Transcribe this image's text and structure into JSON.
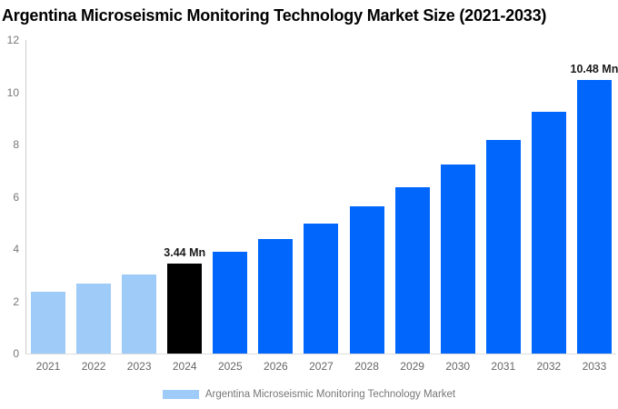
{
  "chart_data": {
    "type": "bar",
    "title": "Argentina Microseismic Monitoring Technology Market Size (2021-2033)",
    "categories": [
      "2021",
      "2022",
      "2023",
      "2024",
      "2025",
      "2026",
      "2027",
      "2028",
      "2029",
      "2030",
      "2031",
      "2032",
      "2033"
    ],
    "values": [
      2.37,
      2.69,
      3.04,
      3.44,
      3.89,
      4.4,
      4.98,
      5.64,
      6.38,
      7.22,
      8.17,
      9.25,
      10.48
    ],
    "unit": "Mn",
    "xlabel": "",
    "ylabel": "",
    "ylim": [
      0,
      12
    ],
    "y_ticks": [
      0,
      2,
      4,
      6,
      8,
      10,
      12
    ],
    "grid": false,
    "legend_position": "bottom",
    "bar_segments": [
      "historical",
      "historical",
      "historical",
      "current",
      "forecast",
      "forecast",
      "forecast",
      "forecast",
      "forecast",
      "forecast",
      "forecast",
      "forecast",
      "forecast"
    ],
    "segment_colors": {
      "historical": "#9ECBF8",
      "current": "#000000",
      "forecast": "#0066FC"
    },
    "point_labels": {
      "3": "3.44 Mn",
      "12": "10.48 Mn"
    },
    "legend": [
      {
        "label": "Argentina Microseismic Monitoring Technology Market",
        "swatch_color": "#9ECBF8"
      }
    ],
    "axis_colors": {
      "y_axis_line": "#cccccc",
      "x_axis_line": "#dddddd",
      "tick_text": "#777777",
      "category_text": "#666666",
      "data_label_text": "#1a1a1a"
    }
  }
}
